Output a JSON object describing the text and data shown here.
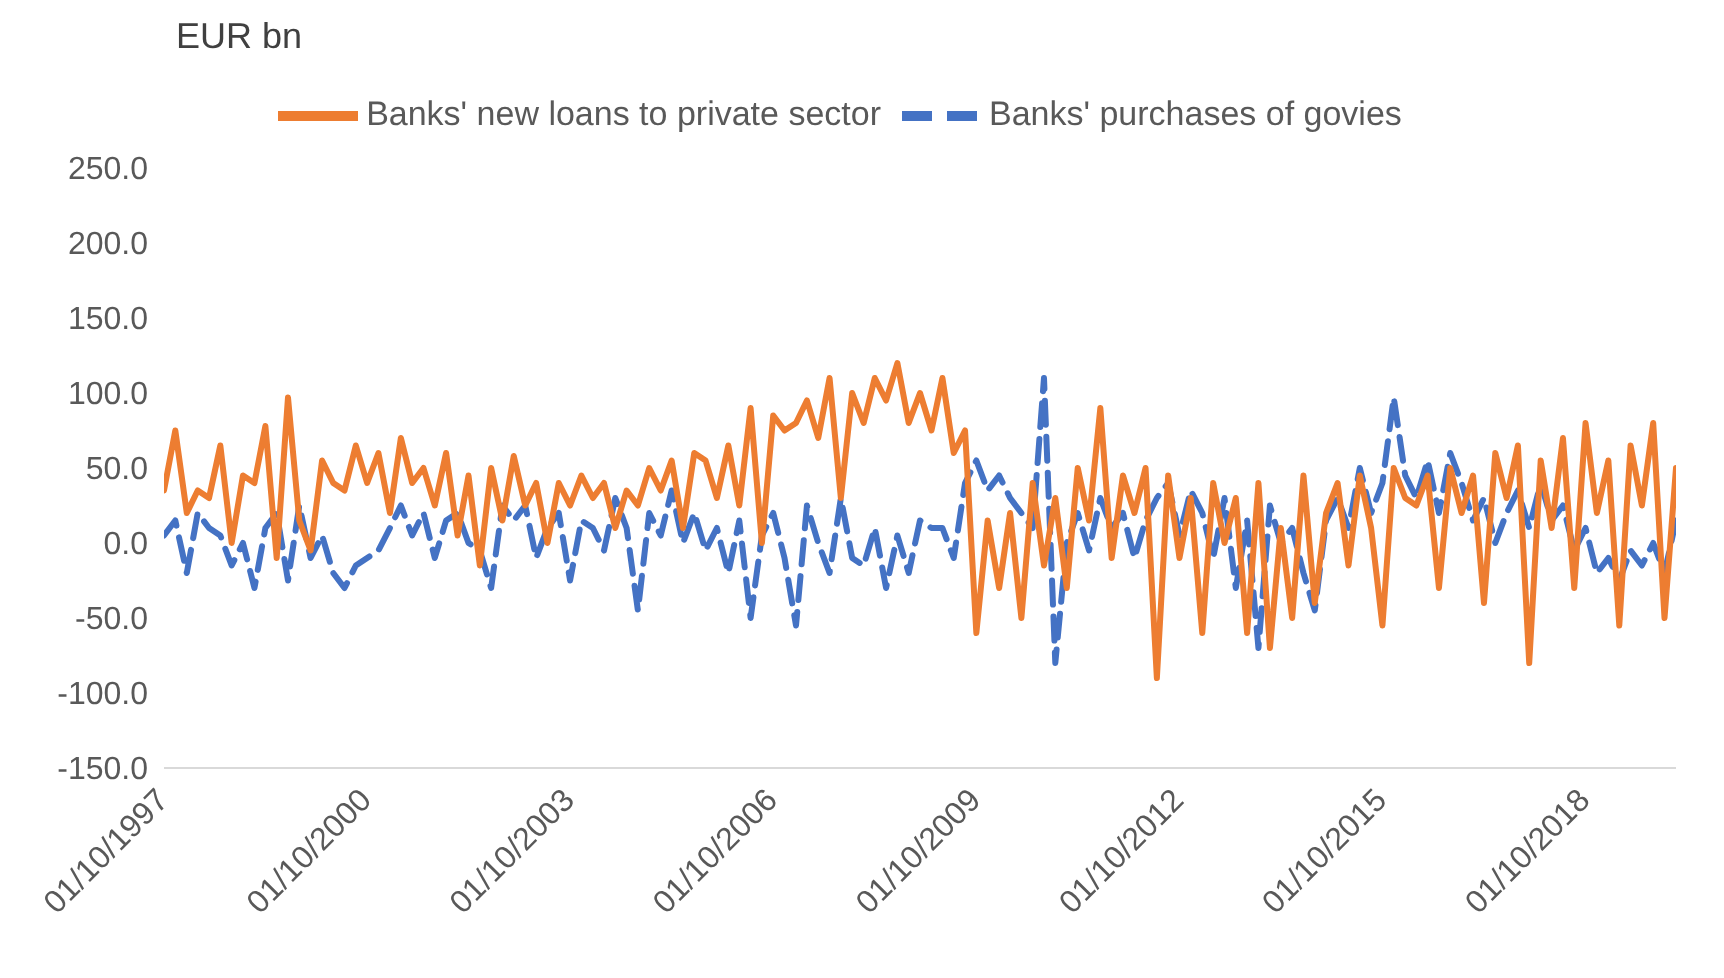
{
  "chart_data": {
    "type": "line",
    "ylabel": "EUR bn",
    "legend": "top",
    "x": [
      "1997-10",
      "1997-12",
      "1998-02",
      "1998-04",
      "1998-06",
      "1998-08",
      "1998-10",
      "1998-12",
      "1999-02",
      "1999-04",
      "1999-06",
      "1999-08",
      "1999-10",
      "1999-12",
      "2000-02",
      "2000-04",
      "2000-06",
      "2000-08",
      "2000-10",
      "2000-12",
      "2001-02",
      "2001-04",
      "2001-06",
      "2001-08",
      "2001-10",
      "2001-12",
      "2002-02",
      "2002-04",
      "2002-06",
      "2002-08",
      "2002-10",
      "2002-12",
      "2003-02",
      "2003-04",
      "2003-06",
      "2003-08",
      "2003-10",
      "2003-12",
      "2004-02",
      "2004-04",
      "2004-06",
      "2004-08",
      "2004-10",
      "2004-12",
      "2005-02",
      "2005-04",
      "2005-06",
      "2005-08",
      "2005-10",
      "2005-12",
      "2006-02",
      "2006-04",
      "2006-06",
      "2006-08",
      "2006-10",
      "2006-12",
      "2007-02",
      "2007-04",
      "2007-06",
      "2007-08",
      "2007-10",
      "2007-12",
      "2008-02",
      "2008-04",
      "2008-06",
      "2008-08",
      "2008-10",
      "2008-12",
      "2009-02",
      "2009-04",
      "2009-06",
      "2009-08",
      "2009-10",
      "2009-12",
      "2010-02",
      "2010-04",
      "2010-06",
      "2010-08",
      "2010-10",
      "2010-12",
      "2011-02",
      "2011-04",
      "2011-06",
      "2011-08",
      "2011-10",
      "2011-12",
      "2012-02",
      "2012-04",
      "2012-06",
      "2012-08",
      "2012-10",
      "2012-12",
      "2013-02",
      "2013-04",
      "2013-06",
      "2013-08",
      "2013-10",
      "2013-12",
      "2014-02",
      "2014-04",
      "2014-06",
      "2014-08",
      "2014-10",
      "2014-12",
      "2015-02",
      "2015-04",
      "2015-06",
      "2015-08",
      "2015-10",
      "2015-12",
      "2016-02",
      "2016-04",
      "2016-06",
      "2016-08",
      "2016-10",
      "2016-12",
      "2017-02",
      "2017-04",
      "2017-06",
      "2017-08",
      "2017-10",
      "2017-12",
      "2018-02",
      "2018-04",
      "2018-06",
      "2018-08",
      "2018-10",
      "2018-12",
      "2019-02",
      "2019-04",
      "2019-06",
      "2019-08",
      "2019-10",
      "2019-12",
      "2020-02"
    ],
    "series": [
      {
        "name": "Banks' purchases of govies",
        "color": "#4472c4",
        "line_style": "dashed",
        "values": [
          5,
          15,
          -20,
          20,
          10,
          5,
          -15,
          0,
          -30,
          10,
          20,
          -25,
          25,
          -10,
          5,
          -20,
          -30,
          -15,
          -10,
          -5,
          10,
          25,
          5,
          20,
          -10,
          15,
          20,
          0,
          -5,
          -30,
          25,
          15,
          25,
          -10,
          10,
          20,
          -25,
          15,
          10,
          -5,
          30,
          10,
          -45,
          20,
          5,
          35,
          0,
          20,
          -5,
          10,
          -20,
          15,
          -50,
          5,
          20,
          -10,
          -55,
          25,
          0,
          -20,
          30,
          -10,
          -15,
          10,
          -30,
          5,
          -20,
          15,
          10,
          10,
          -10,
          40,
          55,
          35,
          45,
          30,
          20,
          10,
          110,
          -80,
          0,
          20,
          -5,
          30,
          10,
          20,
          -10,
          15,
          30,
          40,
          5,
          35,
          20,
          -10,
          30,
          -30,
          15,
          -70,
          25,
          0,
          10,
          -20,
          -45,
          15,
          30,
          10,
          50,
          20,
          40,
          97,
          45,
          30,
          55,
          20,
          60,
          40,
          15,
          30,
          0,
          20,
          35,
          10,
          40,
          15,
          25,
          -5,
          10,
          -20,
          -10,
          -25,
          -5,
          -15,
          0,
          -20,
          15
        ]
      },
      {
        "name": "Banks' new loans to private sector",
        "color": "#ed7d31",
        "line_style": "solid",
        "values": [
          35,
          75,
          20,
          35,
          30,
          65,
          0,
          45,
          40,
          78,
          -10,
          97,
          15,
          -5,
          55,
          40,
          35,
          65,
          40,
          60,
          20,
          70,
          40,
          50,
          25,
          60,
          5,
          45,
          -15,
          50,
          15,
          58,
          25,
          40,
          0,
          40,
          25,
          45,
          30,
          40,
          10,
          35,
          25,
          50,
          35,
          55,
          10,
          60,
          55,
          30,
          65,
          25,
          90,
          0,
          85,
          75,
          80,
          95,
          70,
          110,
          30,
          100,
          80,
          110,
          95,
          120,
          80,
          100,
          75,
          110,
          60,
          75,
          -60,
          15,
          -30,
          20,
          -50,
          40,
          -15,
          30,
          -30,
          50,
          15,
          90,
          -10,
          45,
          20,
          50,
          -90,
          45,
          -10,
          30,
          -60,
          40,
          0,
          30,
          -60,
          40,
          -70,
          10,
          -50,
          45,
          -40,
          20,
          40,
          -15,
          45,
          10,
          -55,
          50,
          30,
          25,
          45,
          -30,
          50,
          20,
          45,
          -40,
          60,
          30,
          65,
          -80,
          55,
          10,
          70,
          -30,
          80,
          20,
          55,
          -55,
          65,
          25,
          80,
          -50,
          50
        ]
      }
    ],
    "xlim": [
      "1997-10",
      "2020-02"
    ],
    "xticks": [
      {
        "value": "1997-10",
        "label": "01/10/1997"
      },
      {
        "value": "2000-10",
        "label": "01/10/2000"
      },
      {
        "value": "2003-10",
        "label": "01/10/2003"
      },
      {
        "value": "2006-10",
        "label": "01/10/2006"
      },
      {
        "value": "2009-10",
        "label": "01/10/2009"
      },
      {
        "value": "2012-10",
        "label": "01/10/2012"
      },
      {
        "value": "2015-10",
        "label": "01/10/2015"
      },
      {
        "value": "2018-10",
        "label": "01/10/2018"
      }
    ],
    "ylim": [
      -150,
      250
    ],
    "yticks": [
      {
        "value": -150,
        "label": "-150.0"
      },
      {
        "value": -100,
        "label": "-100.0"
      },
      {
        "value": -50,
        "label": "-50.0"
      },
      {
        "value": 0,
        "label": "0.0"
      },
      {
        "value": 50,
        "label": "50.0"
      },
      {
        "value": 100,
        "label": "100.0"
      },
      {
        "value": 150,
        "label": "150.0"
      },
      {
        "value": 200,
        "label": "200.0"
      },
      {
        "value": 250,
        "label": "250.0"
      }
    ]
  }
}
